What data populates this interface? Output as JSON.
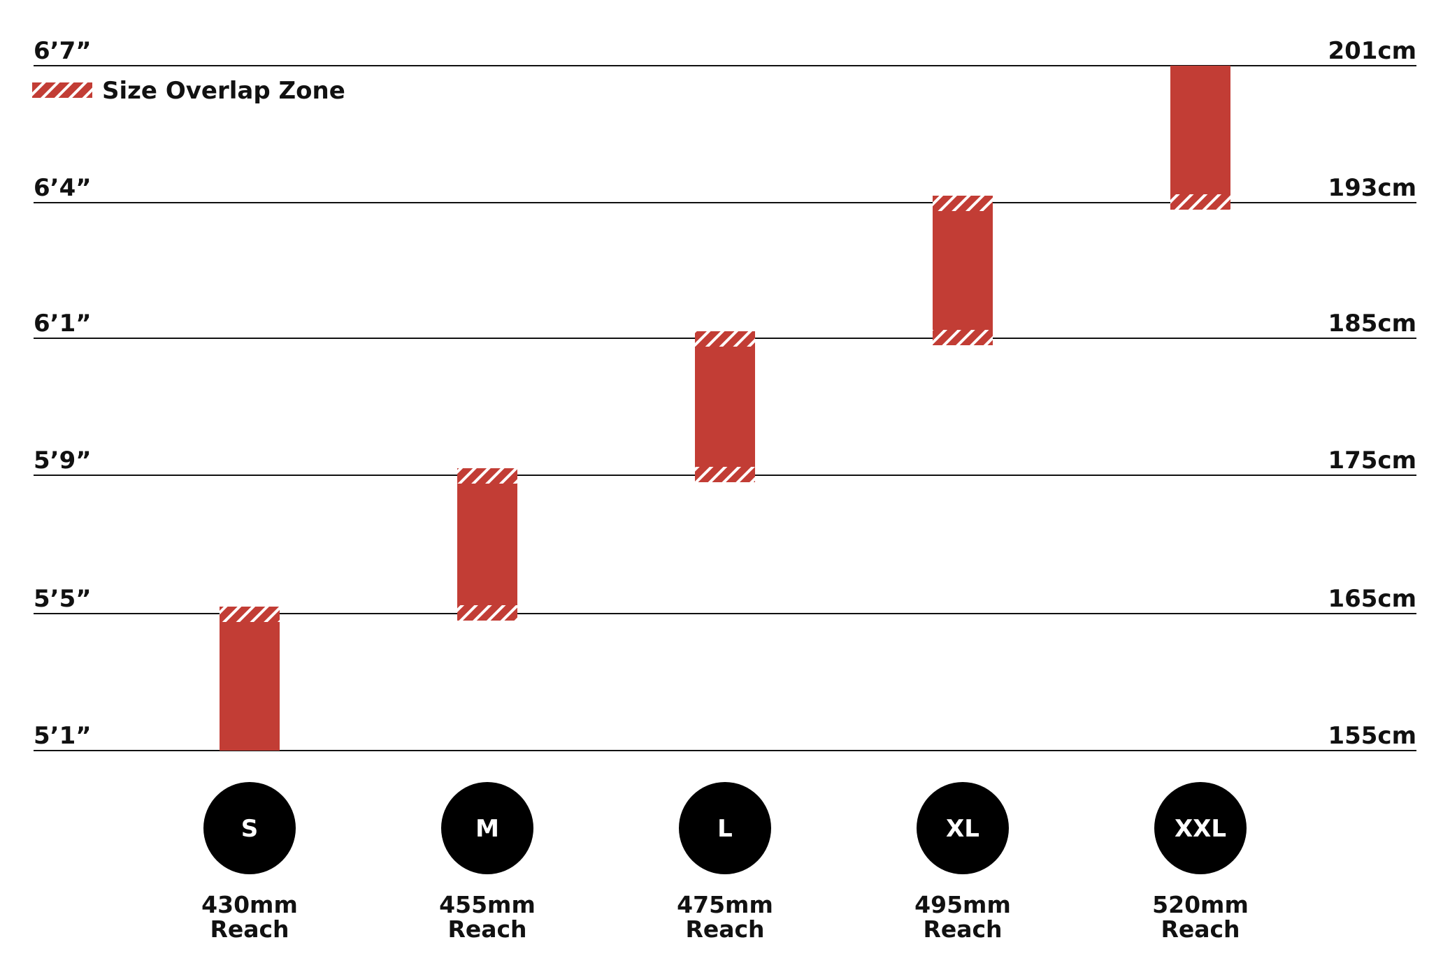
{
  "colors": {
    "bar": "#c23d35",
    "line": "#111111",
    "circle": "#000000",
    "background": "#ffffff"
  },
  "legend": {
    "label": "Size Overlap Zone"
  },
  "chart_data": {
    "type": "bar",
    "title": "",
    "xlabel": "",
    "ylabel": "",
    "legend_position": "top-left",
    "grid": true,
    "height_levels": [
      {
        "imperial": "5’1”",
        "metric": "155cm"
      },
      {
        "imperial": "5’5”",
        "metric": "165cm"
      },
      {
        "imperial": "5’9”",
        "metric": "175cm"
      },
      {
        "imperial": "6’1”",
        "metric": "185cm"
      },
      {
        "imperial": "6’4”",
        "metric": "193cm"
      },
      {
        "imperial": "6’7”",
        "metric": "201cm"
      }
    ],
    "sizes": [
      {
        "size": "S",
        "reach_value": "430mm",
        "reach_label": "Reach",
        "from_level": 0,
        "to_level": 1,
        "overlap_bottom": false,
        "overlap_top": true
      },
      {
        "size": "M",
        "reach_value": "455mm",
        "reach_label": "Reach",
        "from_level": 1,
        "to_level": 2,
        "overlap_bottom": true,
        "overlap_top": true
      },
      {
        "size": "L",
        "reach_value": "475mm",
        "reach_label": "Reach",
        "from_level": 2,
        "to_level": 3,
        "overlap_bottom": true,
        "overlap_top": true
      },
      {
        "size": "XL",
        "reach_value": "495mm",
        "reach_label": "Reach",
        "from_level": 3,
        "to_level": 4,
        "overlap_bottom": true,
        "overlap_top": true
      },
      {
        "size": "XXL",
        "reach_value": "520mm",
        "reach_label": "Reach",
        "from_level": 4,
        "to_level": 5,
        "overlap_bottom": true,
        "overlap_top": false
      }
    ]
  }
}
